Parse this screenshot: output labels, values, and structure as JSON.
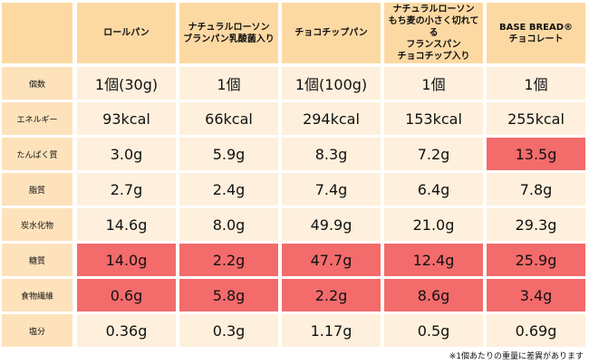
{
  "table": {
    "header": [
      [
        "ロールパン"
      ],
      [
        "ナチュラルローソン",
        "ブランパン乳酸菌入り"
      ],
      [
        "チョコチップパン"
      ],
      [
        "ナチュラルローソン",
        "もち麦の小さく切れてる",
        "フランスパン",
        "チョコチップ入り"
      ],
      [
        "BASE BREAD®",
        "チョコレート"
      ]
    ],
    "rows": [
      {
        "label": "個数",
        "cells": [
          "1個(30g)",
          "1個",
          "1個(100g)",
          "1個",
          "1個"
        ],
        "highlight": [
          false,
          false,
          false,
          false,
          false
        ]
      },
      {
        "label": "エネルギー",
        "cells": [
          "93kcal",
          "66kcal",
          "294kcal",
          "153kcal",
          "255kcal"
        ],
        "highlight": [
          false,
          false,
          false,
          false,
          false
        ]
      },
      {
        "label": "たんぱく質",
        "cells": [
          "3.0g",
          "5.9g",
          "8.3g",
          "7.2g",
          "13.5g"
        ],
        "highlight": [
          false,
          false,
          false,
          false,
          true
        ]
      },
      {
        "label": "脂質",
        "cells": [
          "2.7g",
          "2.4g",
          "7.4g",
          "6.4g",
          "7.8g"
        ],
        "highlight": [
          false,
          false,
          false,
          false,
          false
        ]
      },
      {
        "label": "炭水化物",
        "cells": [
          "14.6g",
          "8.0g",
          "49.9g",
          "21.0g",
          "29.3g"
        ],
        "highlight": [
          false,
          false,
          false,
          false,
          false
        ]
      },
      {
        "label": "糖質",
        "cells": [
          "14.0g",
          "2.2g",
          "47.7g",
          "12.4g",
          "25.9g"
        ],
        "highlight": [
          true,
          true,
          true,
          true,
          true
        ]
      },
      {
        "label": "食物繊維",
        "cells": [
          "0.6g",
          "5.8g",
          "2.2g",
          "8.6g",
          "3.4g"
        ],
        "highlight": [
          true,
          true,
          true,
          true,
          true
        ]
      },
      {
        "label": "塩分",
        "cells": [
          "0.36g",
          "0.3g",
          "1.17g",
          "0.5g",
          "0.69g"
        ],
        "highlight": [
          false,
          false,
          false,
          false,
          false
        ]
      }
    ],
    "note": "※1個あたりの重量に差異があります"
  }
}
